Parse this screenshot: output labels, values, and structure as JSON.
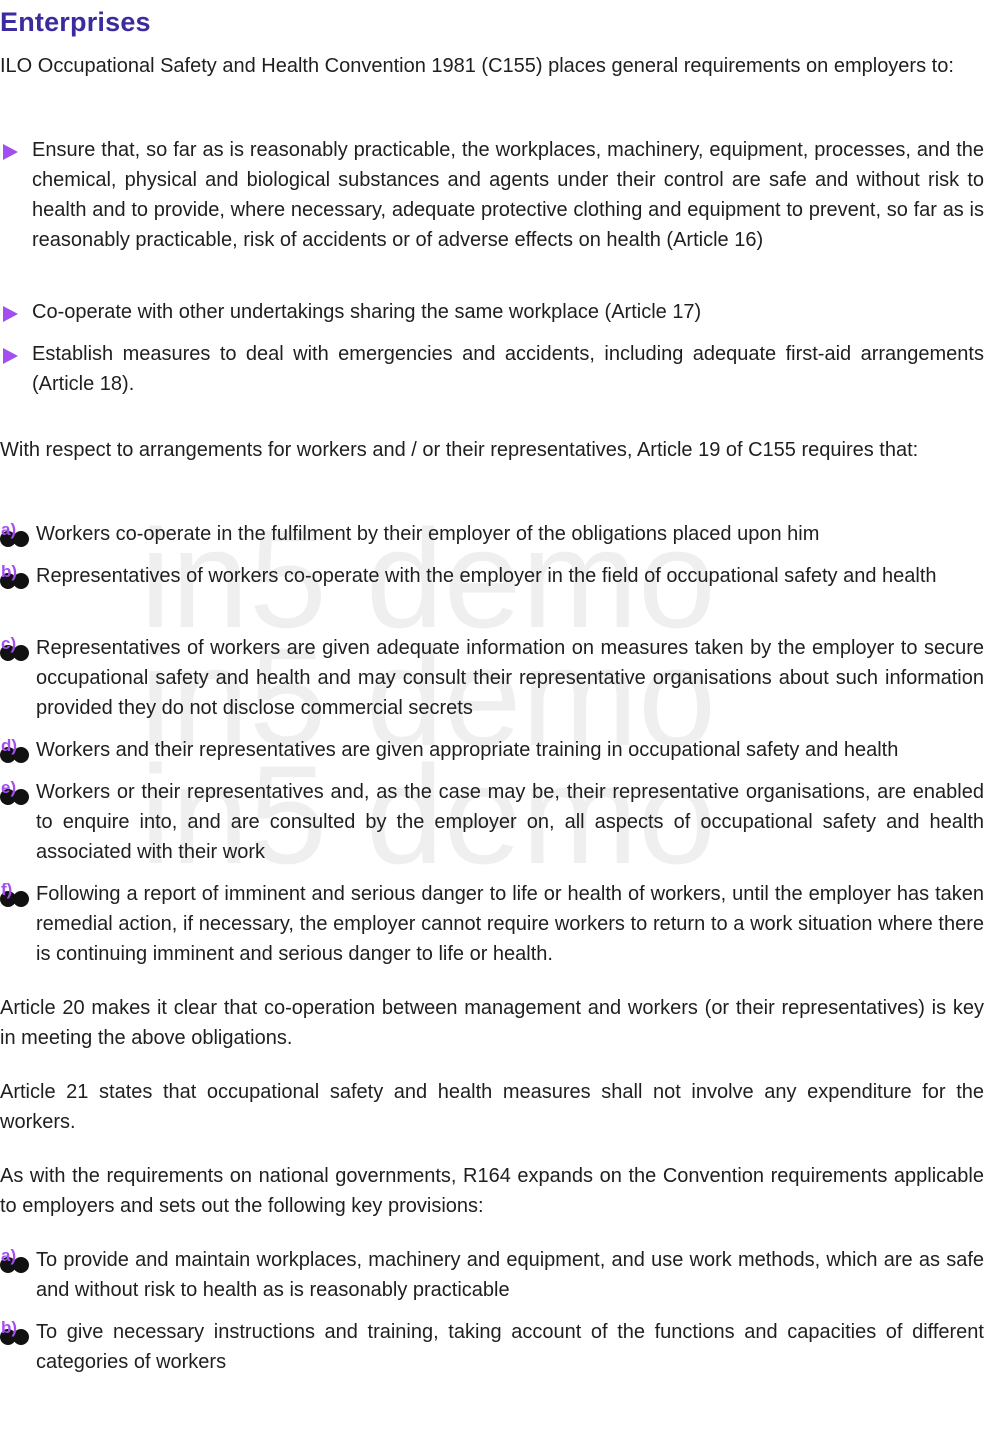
{
  "title": "Enterprises",
  "intro": "ILO Occupational Safety and Health Convention 1981 (C155) places general requirements on employers to:",
  "bullets": [
    "Ensure that, so far as is reasonably practicable, the workplaces, machinery, equipment, processes, and the chemical, physical and biological substances and agents under their control are safe and without risk to health and to provide, where necessary, adequate protective clothing and equipment to prevent, so far as is reasonably practicable, risk of accidents or of adverse effects on health (Article 16)",
    "Co-operate with other undertakings sharing the same workplace (Article 17)",
    "Establish measures to deal with emergencies and accidents, including adequate first-aid arrangements (Article 18)."
  ],
  "article19_intro": "With respect to arrangements for workers and / or their representatives, Article 19 of C155 requires that:",
  "article19_items": [
    {
      "letter": "a)",
      "text": "Workers co-operate in the fulfilment by their employer of the obligations placed upon him"
    },
    {
      "letter": "b)",
      "text": "Representatives of workers co-operate with the employer in the field of occupational safety and health"
    },
    {
      "letter": "c)",
      "text": "Representatives of workers are given adequate information on measures taken by the employer to secure occupational safety and health and may consult their representative organisations about such information provided they do not disclose commercial secrets"
    },
    {
      "letter": "d)",
      "text": "Workers and their representatives are given appropriate training in occupational safety and health"
    },
    {
      "letter": "e)",
      "text": "Workers or their representatives and, as the case may be, their representative organisations, are enabled to enquire into, and are consulted by the employer on, all aspects of occupational safety and health associated with their work"
    },
    {
      "letter": "f)",
      "text": "Following a report of imminent and serious danger to life or health of workers, until the employer has taken remedial action, if necessary, the employer cannot require workers to return to a work situation where there is continuing imminent and serious danger to life or health."
    }
  ],
  "article20": "Article 20 makes it clear that co-operation between management and workers (or their representatives) is key in meeting the above obligations.",
  "article21": "Article 21 states that occupational safety and health measures shall not involve any expenditure for the workers.",
  "r164_intro": "As with the requirements on national governments, R164 expands on the Convention requirements applicable to employers and sets out the following key provisions:",
  "r164_items": [
    {
      "letter": "a)",
      "text": "To provide and maintain workplaces, machinery and equipment, and use work methods, which are as safe and without risk to health as is reasonably practicable"
    },
    {
      "letter": "b)",
      "text": "To give necessary instructions and training, taking account of the functions and capacities of different categories of workers"
    }
  ],
  "watermark": [
    "in5 demo",
    "in5 demo",
    "in5 demo"
  ],
  "colors": {
    "title": "#3b2b9e",
    "accent": "#a34ff0",
    "text": "#1f1f1f"
  }
}
